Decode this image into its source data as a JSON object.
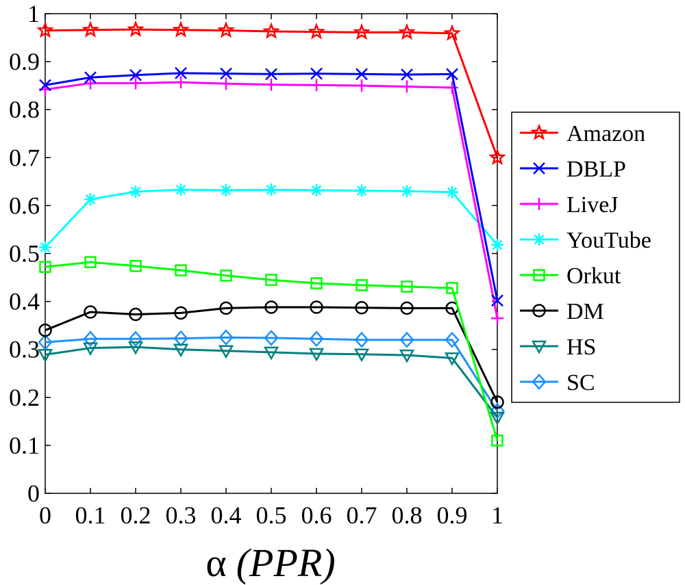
{
  "chart_data": {
    "type": "line",
    "title": "",
    "xlabel_symbol": "α",
    "xlabel_text": "(PPR)",
    "ylabel": "",
    "x": [
      0,
      0.1,
      0.2,
      0.3,
      0.4,
      0.5,
      0.6,
      0.7,
      0.8,
      0.9,
      1
    ],
    "x_tick_labels": [
      "0",
      "0.1",
      "0.2",
      "0.3",
      "0.4",
      "0.5",
      "0.6",
      "0.7",
      "0.8",
      "0.9",
      "1"
    ],
    "xlim": [
      0,
      1
    ],
    "y_ticks": [
      0,
      0.1,
      0.2,
      0.3,
      0.4,
      0.5,
      0.6,
      0.7,
      0.8,
      0.9,
      1
    ],
    "y_tick_labels": [
      "0",
      "0.1",
      "0.2",
      "0.3",
      "0.4",
      "0.5",
      "0.6",
      "0.7",
      "0.8",
      "0.9",
      "1"
    ],
    "ylim": [
      0,
      1
    ],
    "grid": false,
    "legend_position": "right",
    "series": [
      {
        "name": "Amazon",
        "color": "#ff0000",
        "marker": "star",
        "values": [
          0.965,
          0.966,
          0.967,
          0.966,
          0.965,
          0.963,
          0.962,
          0.961,
          0.961,
          0.959,
          0.7
        ]
      },
      {
        "name": "DBLP",
        "color": "#0000ff",
        "marker": "x",
        "values": [
          0.851,
          0.867,
          0.872,
          0.876,
          0.875,
          0.874,
          0.875,
          0.874,
          0.873,
          0.874,
          0.402
        ]
      },
      {
        "name": "LiveJ",
        "color": "#ff00ff",
        "marker": "plus",
        "values": [
          0.842,
          0.855,
          0.855,
          0.857,
          0.854,
          0.852,
          0.851,
          0.85,
          0.848,
          0.846,
          0.365
        ]
      },
      {
        "name": "YouTube",
        "color": "#00ffff",
        "marker": "asterisk",
        "values": [
          0.513,
          0.613,
          0.629,
          0.633,
          0.632,
          0.633,
          0.632,
          0.631,
          0.63,
          0.628,
          0.518
        ]
      },
      {
        "name": "Orkut",
        "color": "#00ff00",
        "marker": "square",
        "values": [
          0.472,
          0.482,
          0.474,
          0.465,
          0.454,
          0.445,
          0.438,
          0.434,
          0.431,
          0.428,
          0.11
        ]
      },
      {
        "name": "DM",
        "color": "#000000",
        "marker": "circle",
        "values": [
          0.34,
          0.378,
          0.373,
          0.376,
          0.386,
          0.388,
          0.388,
          0.387,
          0.386,
          0.386,
          0.19
        ]
      },
      {
        "name": "HS",
        "color": "#008080",
        "marker": "triangle-down",
        "values": [
          0.289,
          0.303,
          0.305,
          0.3,
          0.297,
          0.294,
          0.291,
          0.29,
          0.288,
          0.282,
          0.158
        ]
      },
      {
        "name": "SC",
        "color": "#1e90ff",
        "marker": "diamond",
        "values": [
          0.315,
          0.322,
          0.322,
          0.323,
          0.325,
          0.324,
          0.322,
          0.32,
          0.32,
          0.32,
          0.172
        ]
      }
    ]
  }
}
